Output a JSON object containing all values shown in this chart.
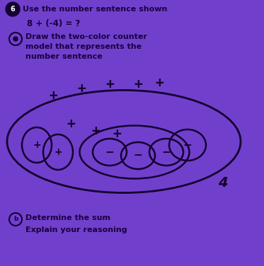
{
  "bg_color": "#7040CC",
  "text_color": "#1a0040",
  "dark_color": "#150030",
  "title_text": "Use the number sentence shown",
  "equation": "8 + (-4) = ?",
  "part_a_text1": "Draw the two-color counter",
  "part_a_text2": "model that represents the",
  "part_a_text3": "number sentence",
  "part_b_text1": "Determine the sum",
  "part_b_text2": "Explain your reasoning",
  "answer": "4",
  "figsize": [
    3.73,
    3.76
  ],
  "dpi": 100
}
